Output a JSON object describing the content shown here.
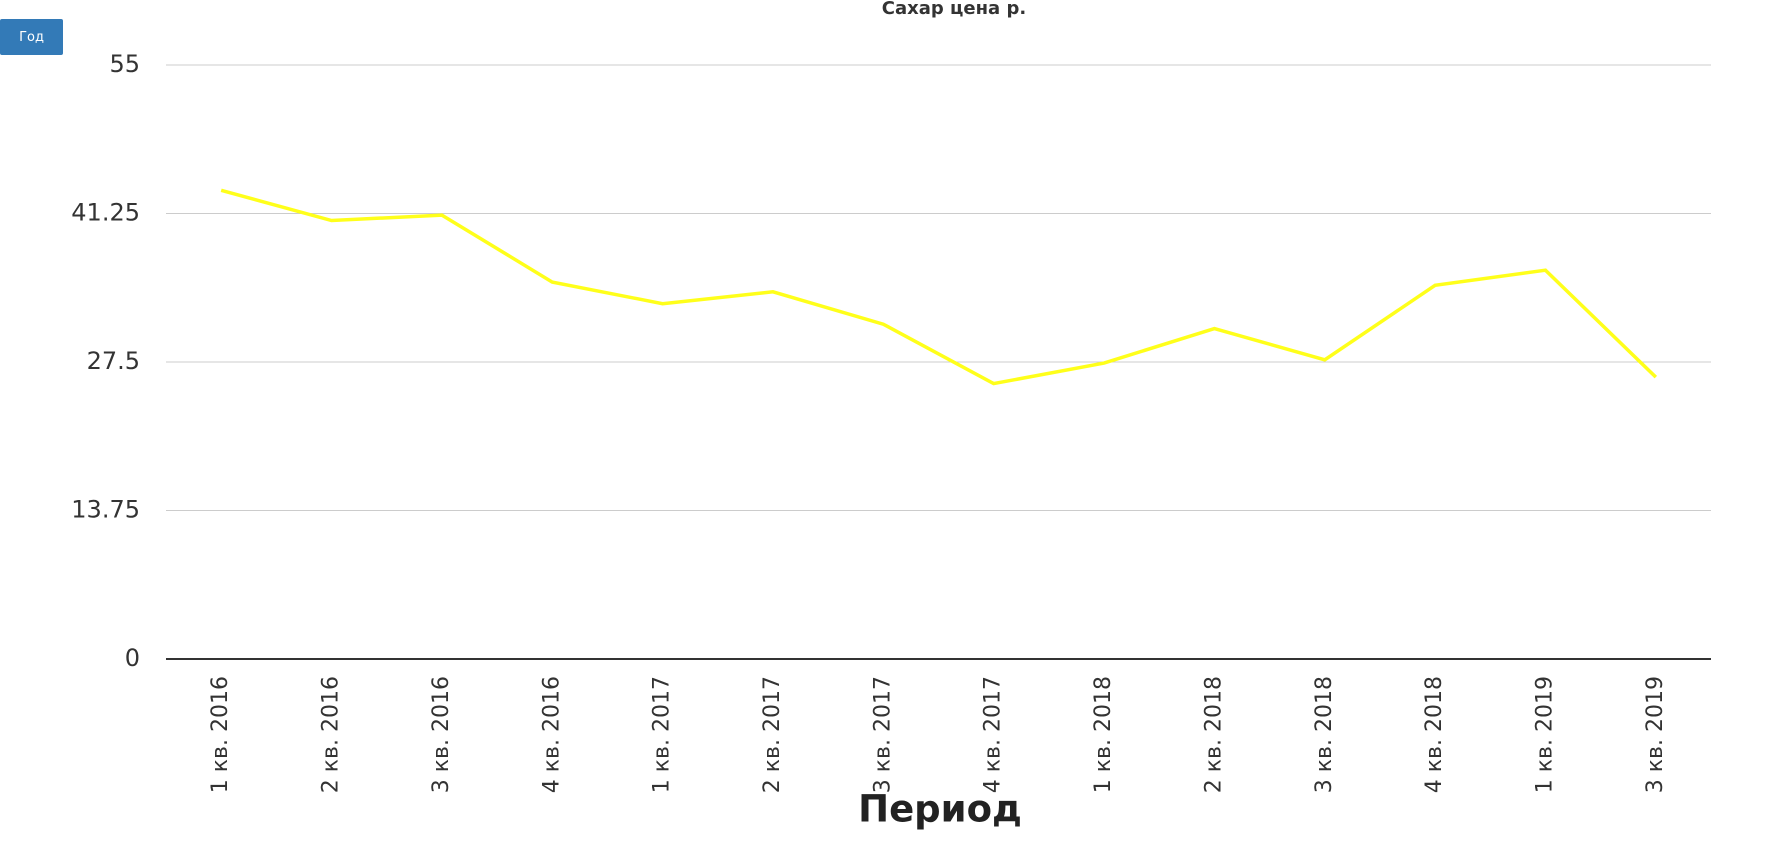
{
  "controls": {
    "button": "Год"
  },
  "chart_data": {
    "type": "line",
    "title": "Сахар цена р.",
    "x_label": "Период",
    "categories": [
      "1 кв. 2016",
      "2 кв. 2016",
      "3 кв. 2016",
      "4 кв. 2016",
      "1 кв. 2017",
      "2 кв. 2017",
      "3 кв. 2017",
      "4 кв. 2017",
      "1 кв. 2018",
      "2 кв. 2018",
      "3 кв. 2018",
      "4 кв. 2018",
      "1 кв. 2019",
      "3 кв. 2019"
    ],
    "values": [
      43.4,
      40.6,
      41.1,
      34.9,
      32.9,
      34.0,
      31.0,
      25.5,
      27.4,
      30.6,
      27.7,
      34.6,
      36.0,
      26.1
    ],
    "color": "#ffff1a",
    "ylim": [
      0,
      55
    ],
    "yticks": [
      0,
      13.75,
      27.5,
      41.25,
      55
    ],
    "grid": true
  }
}
